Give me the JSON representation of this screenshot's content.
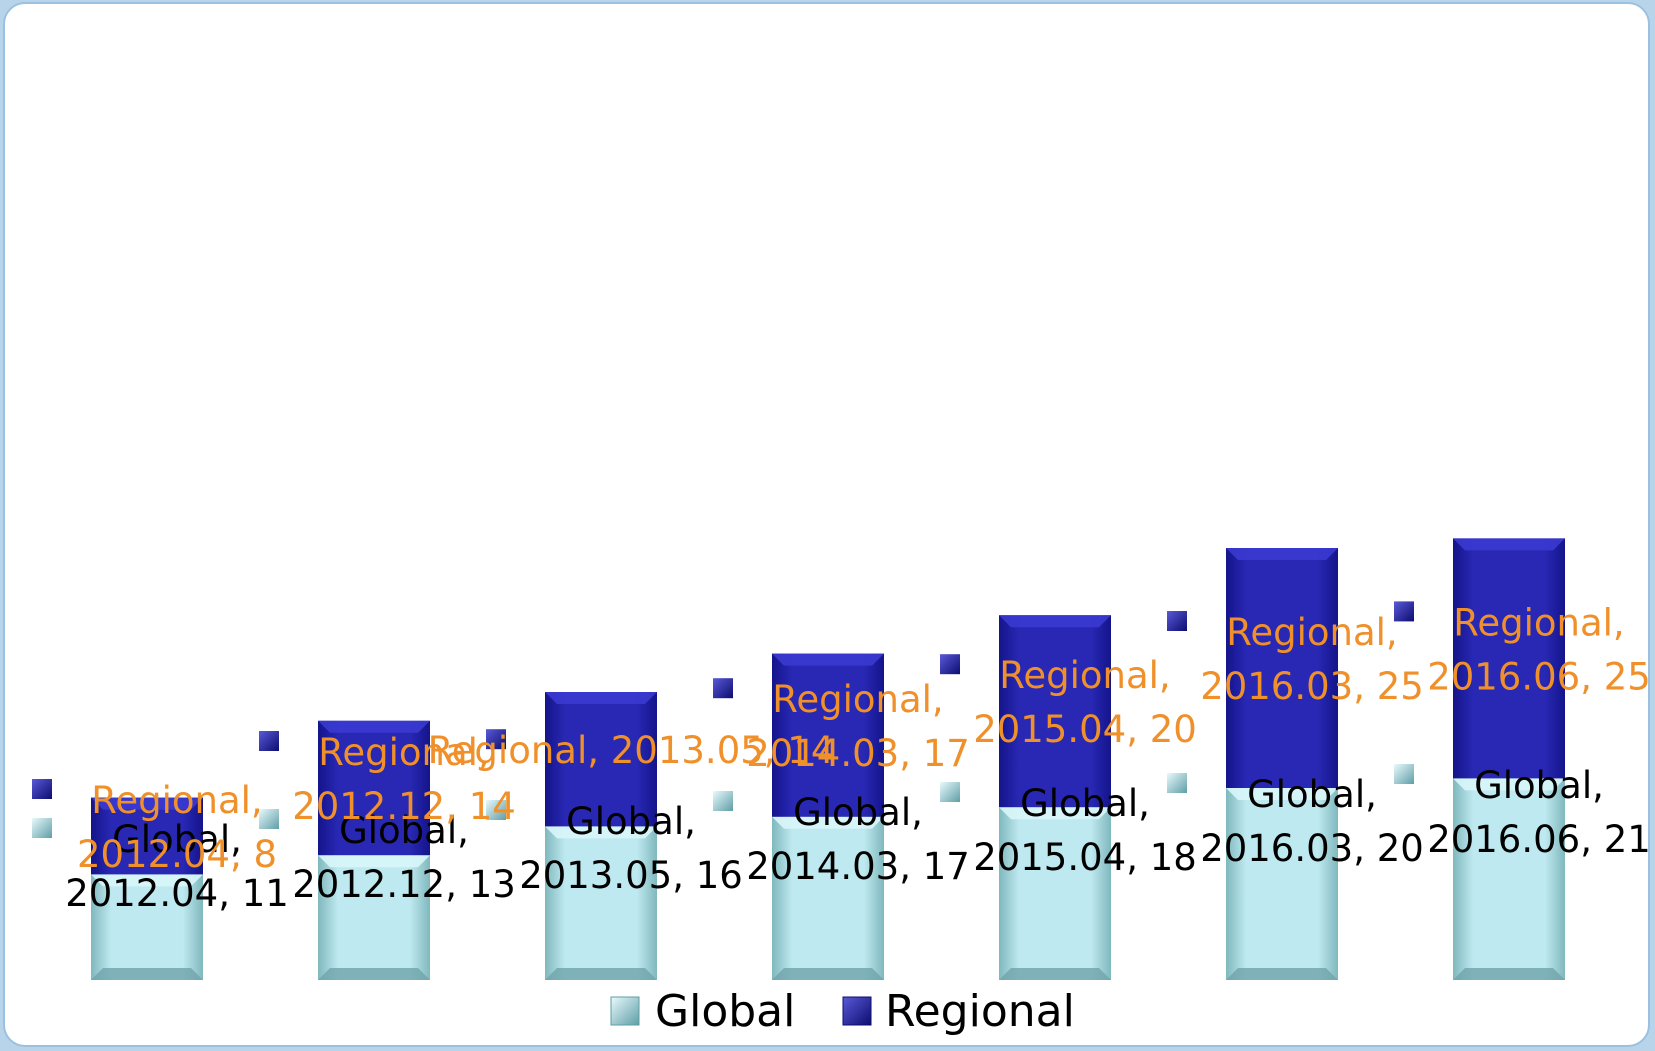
{
  "chart_data": {
    "type": "bar",
    "stacked": true,
    "categories": [
      "2012.04",
      "2012.12",
      "2013.05",
      "2014.03",
      "2015.04",
      "2016.03",
      "2016.06"
    ],
    "series": [
      {
        "name": "Global",
        "values": [
          11,
          13,
          16,
          17,
          18,
          20,
          21
        ],
        "color": "#b9e6ee",
        "label_color": "#000000"
      },
      {
        "name": "Regional",
        "values": [
          8,
          14,
          14,
          17,
          20,
          25,
          25
        ],
        "color": "#2020a8",
        "label_color": "#f0902a"
      }
    ],
    "data_labels": {
      "Global": [
        [
          "Global,",
          "2012.04, 11"
        ],
        [
          "Global,",
          "2012.12, 13"
        ],
        [
          "Global,",
          "2013.05, 16"
        ],
        [
          "Global,",
          "2014.03, 17"
        ],
        [
          "Global,",
          "2015.04, 18"
        ],
        [
          "Global,",
          "2016.03, 20"
        ],
        [
          "Global,",
          "2016.06, 21"
        ]
      ],
      "Regional": [
        [
          "Regional,",
          "2012.04, 8"
        ],
        [
          "Regional,",
          "2012.12, 14"
        ],
        [
          "Regional, 2013.05, 14"
        ],
        [
          "Regional,",
          "2014.03, 17"
        ],
        [
          "Regional,",
          "2015.04, 20"
        ],
        [
          "Regional,",
          "2016.03, 25"
        ],
        [
          "Regional,",
          "2016.06, 25"
        ]
      ]
    },
    "legend": {
      "position": "bottom",
      "entries": [
        "Global",
        "Regional"
      ]
    },
    "ylim": [
      0,
      50
    ],
    "grid": false,
    "title": "",
    "xlabel": "",
    "ylabel": ""
  }
}
